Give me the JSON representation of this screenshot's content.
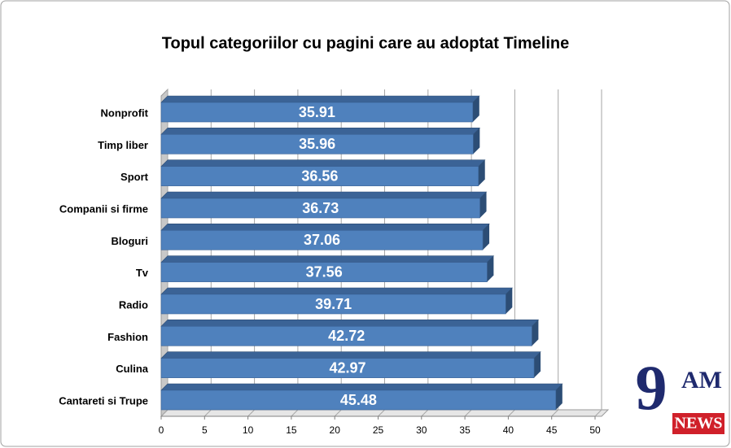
{
  "chart_data": {
    "type": "bar",
    "orientation": "horizontal",
    "title": "Topul categoriilor cu pagini care au adoptat Timeline",
    "categories": [
      "Nonprofit",
      "Timp liber",
      "Sport",
      "Companii si firme",
      "Bloguri",
      "Tv",
      "Radio",
      "Fashion",
      "Culina",
      "Cantareti si Trupe"
    ],
    "values": [
      35.91,
      35.96,
      36.56,
      36.73,
      37.06,
      37.56,
      39.71,
      42.72,
      42.97,
      45.48
    ],
    "color": "#4f81bd",
    "xlim": [
      0,
      50
    ],
    "xticks": [
      0,
      5,
      10,
      15,
      20,
      25,
      30,
      35,
      40,
      45,
      50
    ],
    "grid": true
  },
  "logo": {
    "digit": "9",
    "am": "AM",
    "news": "NEWS"
  }
}
